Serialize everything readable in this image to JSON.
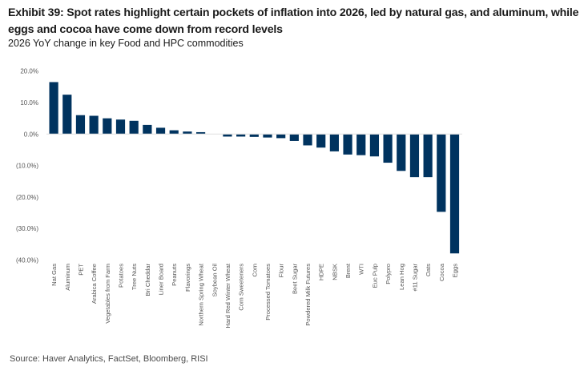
{
  "header": {
    "title": "Exhibit 39: Spot rates highlight certain pockets of inflation into 2026, led by natural gas, and aluminum, while eggs and cocoa have come down from record levels",
    "subtitle": "2026 YoY change in key Food and HPC commodities"
  },
  "footer": {
    "source": "Source: Haver Analytics, FactSet, Bloomberg, RISI"
  },
  "colors": {
    "bar": "#00335f",
    "baseline": "#e3e3e3"
  },
  "chart_data": {
    "type": "bar",
    "title": "2026 YoY change in key Food and HPC commodities",
    "xlabel": "",
    "ylabel": "",
    "ylim": [
      -40,
      20
    ],
    "yticks": [
      20,
      10,
      0,
      -10,
      -20,
      -30,
      -40
    ],
    "ytick_labels": [
      "20.0%",
      "10.0%",
      "0.0%",
      "(10.0%)",
      "(20.0%)",
      "(30.0%)",
      "(40.0%)"
    ],
    "grid": false,
    "legend": "none",
    "unit": "%",
    "categories": [
      "Nat Gas",
      "Aluminum",
      "PET",
      "Arabica Coffee",
      "Vegetables from Farm",
      "Potatoes",
      "Tree Nuts",
      "Bri Cheddar",
      "Liner Board",
      "Peanuts",
      "Flavorings",
      "Northern Spring Wheat",
      "Soybean Oil",
      "Hard Red Winter Wheat",
      "Corn Sweeteners",
      "Corn",
      "Processed Tomatoes",
      "Flour",
      "Beet Sugar",
      "Powdered Milk Futures",
      "HDPE",
      "NBSK",
      "Brent",
      "WTI",
      "Euc Pulp",
      "Polypro",
      "Lean Hog",
      "#11 Sugar",
      "Oats",
      "Cocoa",
      "Eggs"
    ],
    "values": [
      16.5,
      12.5,
      6.0,
      5.8,
      5.0,
      4.6,
      4.2,
      2.9,
      2.0,
      1.2,
      0.8,
      0.6,
      0.0,
      -0.8,
      -0.8,
      -0.9,
      -1.1,
      -1.3,
      -2.2,
      -3.6,
      -4.3,
      -5.5,
      -6.5,
      -6.7,
      -7.1,
      -9.1,
      -11.7,
      -13.7,
      -13.7,
      -24.7,
      -37.9
    ]
  }
}
